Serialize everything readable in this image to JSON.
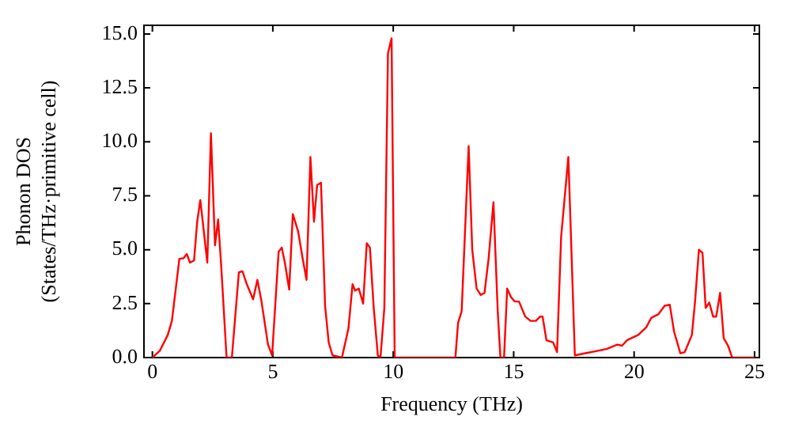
{
  "chart_data": {
    "type": "line",
    "xlabel": "Frequency (THz)",
    "ylabel": "Phonon DOS\n(States/THz·primitive cell)",
    "xlim": [
      -0.35,
      25.2
    ],
    "ylim": [
      0,
      15.4
    ],
    "xticks": [
      0,
      5,
      10,
      15,
      20,
      25
    ],
    "yticks": [
      {
        "value": 0,
        "label": "0.0"
      },
      {
        "value": 2.5,
        "label": "2.5"
      },
      {
        "value": 5,
        "label": "5.0"
      },
      {
        "value": 7.5,
        "label": "7.5"
      },
      {
        "value": 10,
        "label": "10.0"
      },
      {
        "value": 12.5,
        "label": "12.5"
      },
      {
        "value": 15,
        "label": "15.0"
      }
    ],
    "grid": false,
    "legend": false,
    "marker": "none",
    "line_style": "solid",
    "series": [
      {
        "color": "#ff0000",
        "x": [
          0,
          0.31,
          0.64,
          0.81,
          1.12,
          1.29,
          1.43,
          1.56,
          1.73,
          1.86,
          1.99,
          2.28,
          2.43,
          2.6,
          2.73,
          2.86,
          3.08,
          3.3,
          3.59,
          3.74,
          3.92,
          4.18,
          4.36,
          4.53,
          4.8,
          4.97,
          5.24,
          5.37,
          5.5,
          5.68,
          5.83,
          6.05,
          6.23,
          6.4,
          6.56,
          6.71,
          6.84,
          7.0,
          7.17,
          7.32,
          7.48,
          7.87,
          8.14,
          8.31,
          8.42,
          8.57,
          8.75,
          8.9,
          9.03,
          9.19,
          9.36,
          9.47,
          9.63,
          9.78,
          9.93,
          10.06,
          12.58,
          12.69,
          12.84,
          13.13,
          13.28,
          13.46,
          13.63,
          13.79,
          13.96,
          14.16,
          14.34,
          14.45,
          14.6,
          14.73,
          14.89,
          15.04,
          15.22,
          15.48,
          15.7,
          15.92,
          16.1,
          16.2,
          16.36,
          16.64,
          16.8,
          16.97,
          17.27,
          17.54,
          17.98,
          18.42,
          18.86,
          19.3,
          19.5,
          19.7,
          20.17,
          20.5,
          20.72,
          21.0,
          21.27,
          21.48,
          21.66,
          21.92,
          22.1,
          22.4,
          22.53,
          22.69,
          22.84,
          22.97,
          23.12,
          23.28,
          23.41,
          23.57,
          23.72,
          23.9,
          24.07,
          25.0
        ],
        "values": [
          0,
          0.32,
          1.05,
          1.7,
          4.58,
          4.6,
          4.8,
          4.4,
          4.5,
          6.3,
          7.3,
          4.4,
          10.4,
          5.2,
          6.4,
          4.2,
          0,
          0,
          3.95,
          4.0,
          3.4,
          2.7,
          3.6,
          2.6,
          0.6,
          0.1,
          4.9,
          5.1,
          4.4,
          3.15,
          6.65,
          5.85,
          4.65,
          3.6,
          9.3,
          6.3,
          8.0,
          8.1,
          2.4,
          0.7,
          0.1,
          0,
          1.35,
          3.4,
          3.1,
          3.2,
          2.5,
          5.3,
          5.1,
          2.3,
          0.1,
          0,
          2.3,
          14.1,
          14.8,
          0,
          0,
          1.6,
          2.15,
          9.8,
          5.0,
          3.2,
          2.9,
          3.0,
          4.6,
          7.2,
          2.1,
          0,
          0,
          3.2,
          2.8,
          2.6,
          2.6,
          1.9,
          1.7,
          1.7,
          1.9,
          1.9,
          0.8,
          0.7,
          0.25,
          5.6,
          9.3,
          0.1,
          0.2,
          0.3,
          0.4,
          0.6,
          0.55,
          0.8,
          1.05,
          1.4,
          1.85,
          2.0,
          2.4,
          2.45,
          1.2,
          0.2,
          0.25,
          1.05,
          2.6,
          5.0,
          4.85,
          2.3,
          2.55,
          1.9,
          1.9,
          3.0,
          0.9,
          0.55,
          0,
          0
        ]
      }
    ]
  }
}
